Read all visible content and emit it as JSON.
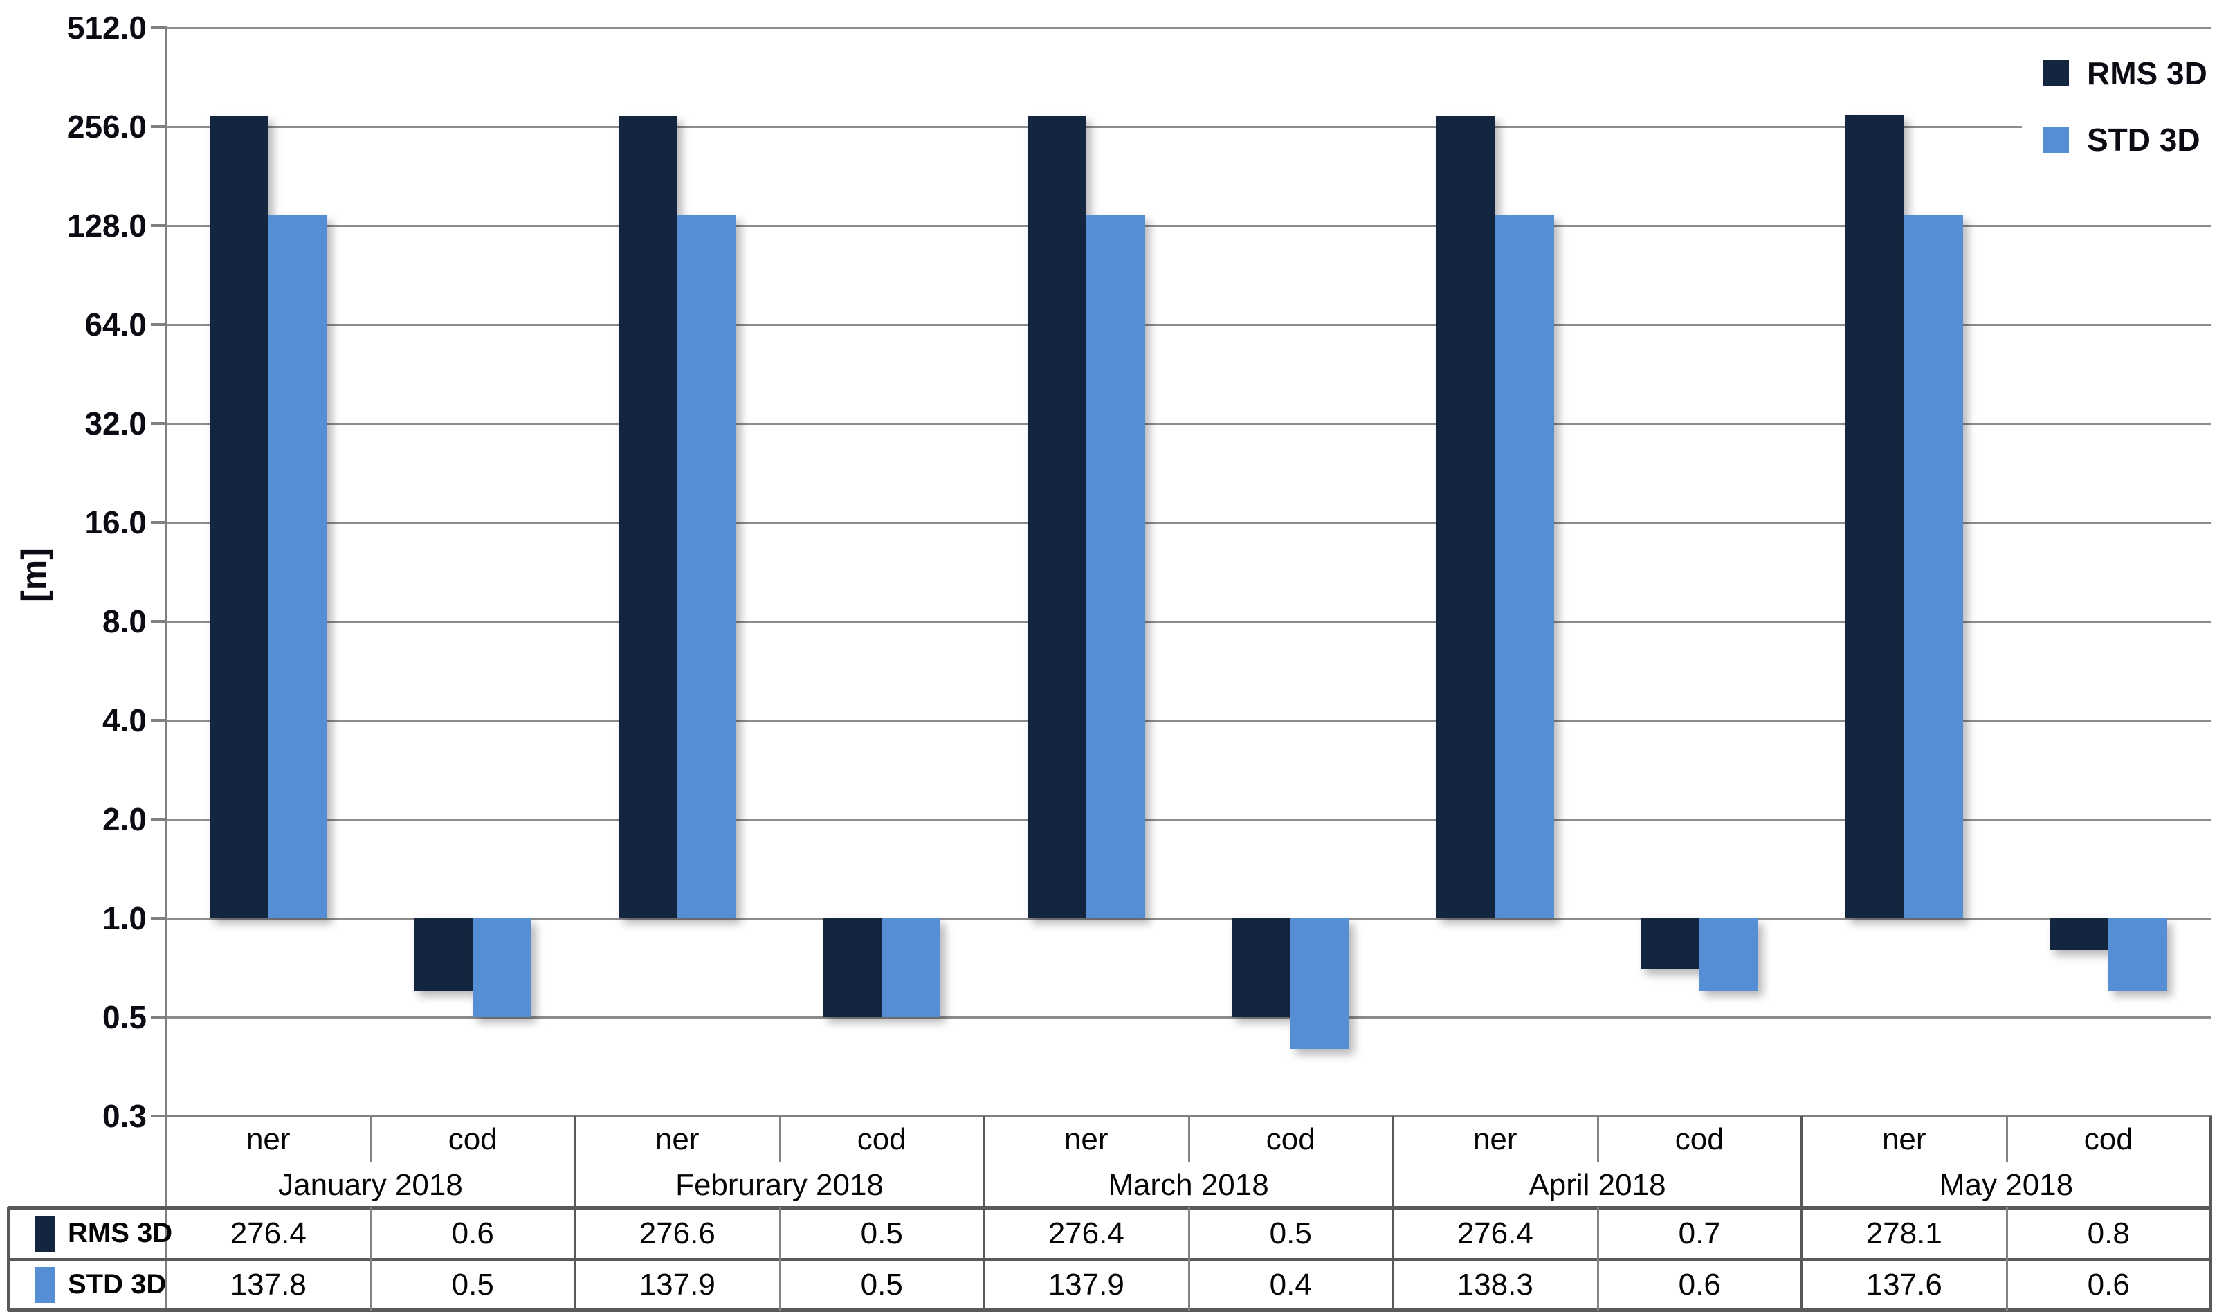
{
  "chart_data": {
    "type": "bar",
    "title": "",
    "ylabel": "[m]",
    "y_axis": {
      "scale": "log2",
      "min": 0.25,
      "max": 512,
      "bar_baseline": 1.0,
      "tick_labels": [
        "512.0",
        "256.0",
        "128.0",
        "64.0",
        "32.0",
        "16.0",
        "8.0",
        "4.0",
        "2.0",
        "1.0",
        "0.5",
        "0.3"
      ],
      "tick_values": [
        512,
        256,
        128,
        64,
        32,
        16,
        8,
        4,
        2,
        1,
        0.5,
        0.25
      ]
    },
    "x_groups": [
      "January 2018",
      "Februrary 2018",
      "March 2018",
      "April 2018",
      "May 2018"
    ],
    "x_subgroups": [
      "ner",
      "cod"
    ],
    "series": [
      {
        "name": "RMS 3D",
        "color": "#14263F",
        "values": [
          276.4,
          0.6,
          276.6,
          0.5,
          276.4,
          0.5,
          276.4,
          0.7,
          278.1,
          0.8
        ],
        "labels": [
          "276.4",
          "0.6",
          "276.6",
          "0.5",
          "276.4",
          "0.5",
          "276.4",
          "0.7",
          "278.1",
          "0.8"
        ]
      },
      {
        "name": "STD 3D",
        "color": "#558ED4",
        "values": [
          137.8,
          0.5,
          137.9,
          0.5,
          137.9,
          0.4,
          138.3,
          0.6,
          137.6,
          0.6
        ],
        "labels": [
          "137.8",
          "0.5",
          "137.9",
          "0.5",
          "137.9",
          "0.4",
          "138.3",
          "0.6",
          "137.6",
          "0.6"
        ]
      }
    ],
    "legend_position": "top-right",
    "grid": true,
    "data_table_shown": true
  },
  "colors": {
    "rms_bar": "#14263F",
    "std_bar": "#558ED4",
    "gridline": "#8C8C8C",
    "axis_line": "#7F7F7F",
    "table_border_thick": "#595959",
    "table_border_thin": "#828282",
    "text": "#050505",
    "background": "#FFFFFF"
  }
}
